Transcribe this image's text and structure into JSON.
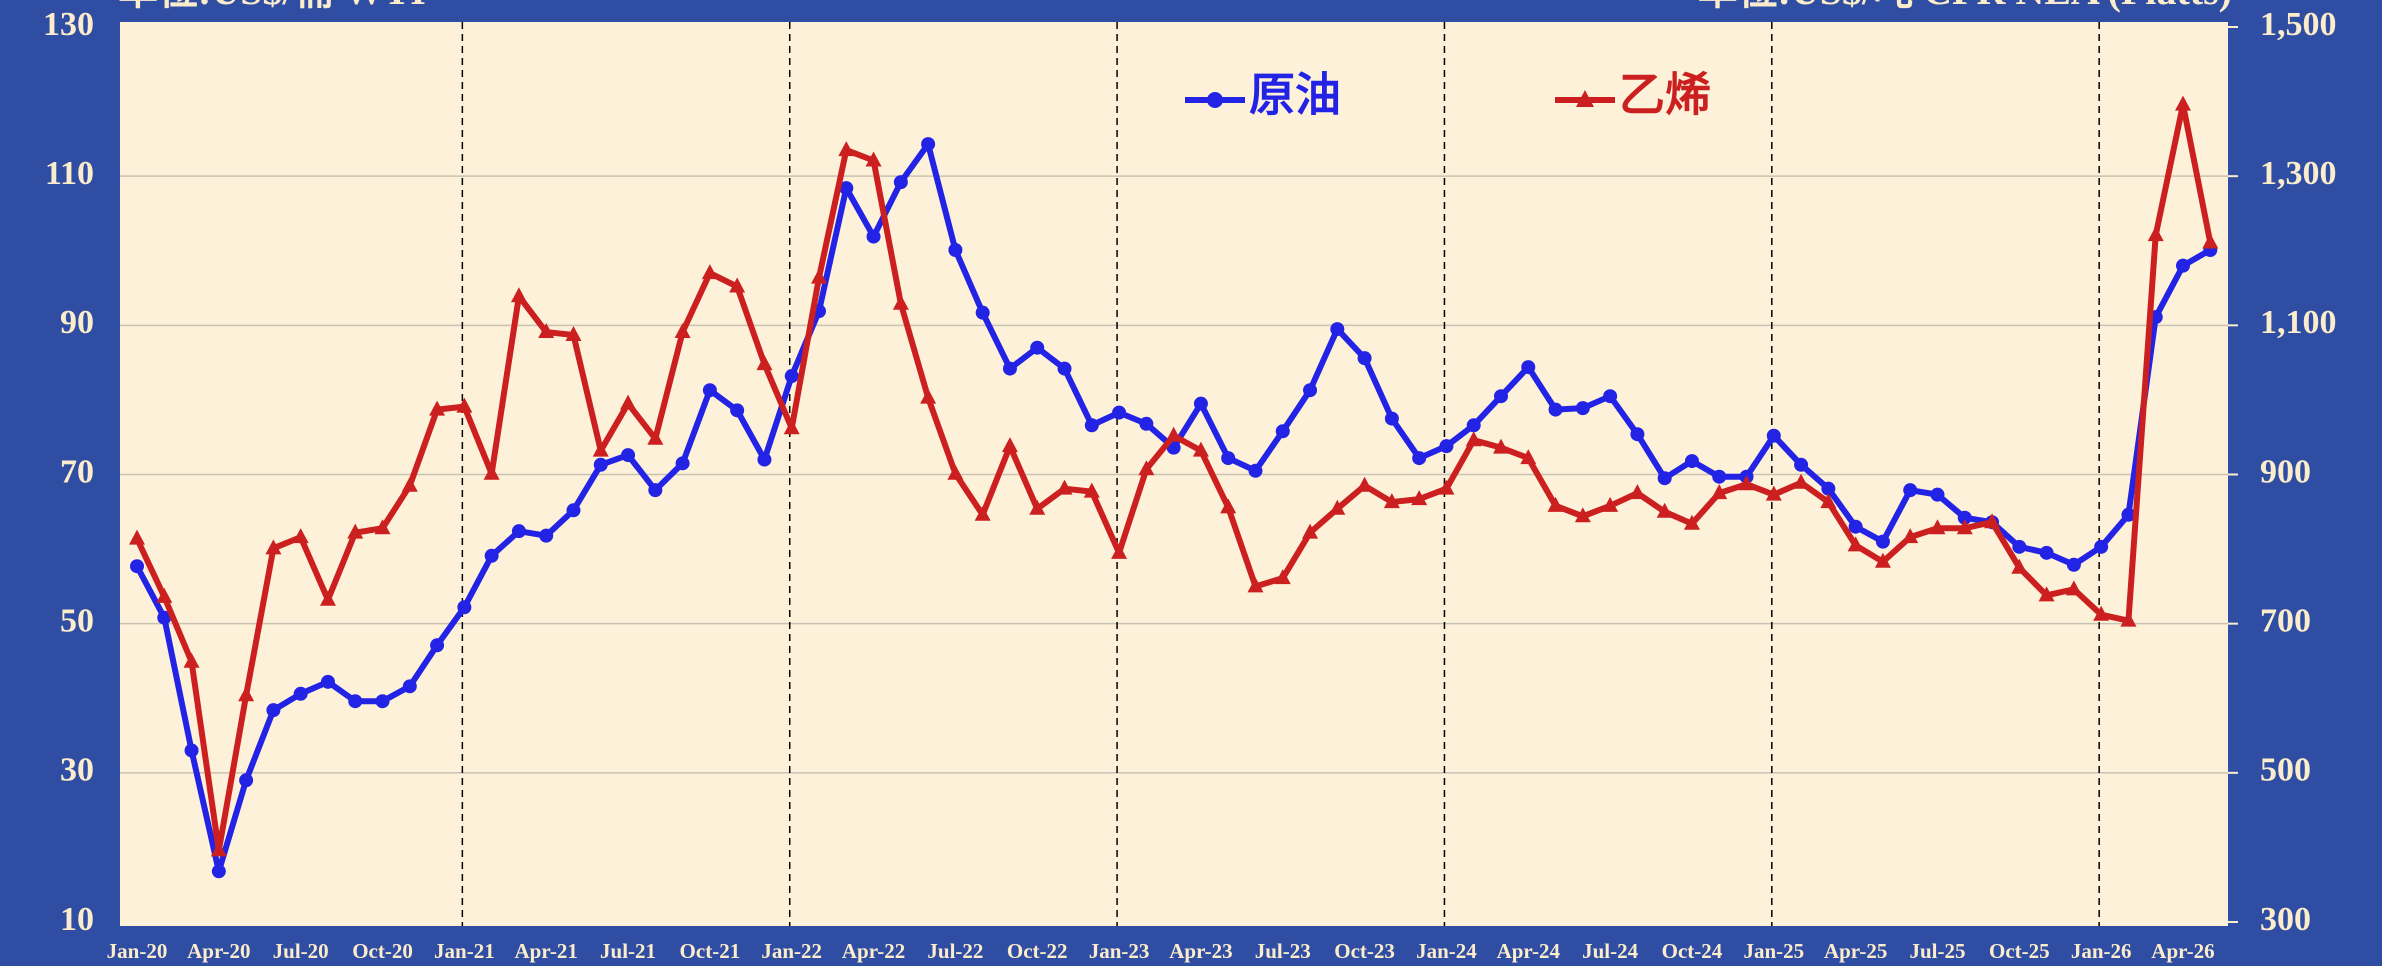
{
  "chart_data": {
    "type": "line",
    "title_left": "单位:US$/桶 WTI",
    "title_right": "单位:US$/吨 CFR NEA (Platts)",
    "categories": [
      "Jan-20",
      null,
      null,
      "Apr-20",
      null,
      null,
      "Jul-20",
      null,
      null,
      "Oct-20",
      null,
      null,
      "Jan-21",
      null,
      null,
      "Apr-21",
      null,
      null,
      "Jul-21",
      null,
      null,
      "Oct-21",
      null,
      null,
      "Jan-22",
      null,
      null,
      "Apr-22",
      null,
      null,
      "Jul-22",
      null,
      null,
      "Oct-22",
      null,
      null,
      "Jan-23",
      null,
      null,
      "Apr-23",
      null,
      null,
      "Jul-23",
      null,
      null,
      "Oct-23",
      null,
      null,
      "Jan-24",
      null,
      null,
      "Apr-24",
      null,
      null,
      "Jul-24",
      null,
      null,
      "Oct-24",
      null,
      null,
      "Jan-25",
      null,
      null,
      "Apr-25",
      null,
      null,
      "Jul-25",
      null,
      null,
      "Oct-25",
      null,
      null,
      "Jan-26",
      null,
      null,
      "Apr-26",
      null
    ],
    "series": [
      {
        "name": "原油",
        "color": "#2323e6",
        "marker": "circle",
        "values": [
          57.7,
          50.8,
          33,
          16.8,
          29,
          38.4,
          40.6,
          42.2,
          39.6,
          39.6,
          41.6,
          47.1,
          52.2,
          59.1,
          62.4,
          61.8,
          65.2,
          71.3,
          72.6,
          67.9,
          71.5,
          81.3,
          78.6,
          72,
          83.2,
          91.9,
          108.4,
          101.9,
          109.2,
          114.3,
          100.1,
          91.7,
          84.2,
          87,
          84.2,
          76.6,
          78.3,
          76.8,
          73.6,
          79.5,
          72.2,
          70.5,
          75.8,
          81.3,
          89.5,
          85.6,
          77.5,
          72.2,
          73.8,
          76.6,
          80.5,
          84.4,
          78.7,
          78.9,
          80.5,
          75.4,
          69.5,
          71.8,
          69.7,
          69.7,
          75.2,
          71.3,
          68.1,
          63,
          61,
          67.9,
          67.3,
          64.2,
          63.6,
          60.3,
          59.5,
          57.9,
          60.3,
          64.6,
          91.1,
          98,
          100.1
        ]
      },
      {
        "name": "乙烯",
        "color": "#cc2020",
        "marker": "triangle",
        "axis": "y2",
        "values": [
          814,
          736,
          649,
          396,
          604,
          801,
          816,
          732,
          822,
          828,
          885,
          987,
          991,
          901,
          1139,
          1091,
          1087,
          932,
          995,
          948,
          1091,
          1170,
          1152,
          1048,
          962,
          1164,
          1335,
          1321,
          1129,
          1003,
          901,
          846,
          938,
          854,
          881,
          877,
          795,
          907,
          952,
          932,
          856,
          750,
          761,
          822,
          854,
          885,
          863,
          867,
          881,
          946,
          936,
          922,
          858,
          844,
          858,
          875,
          850,
          834,
          875,
          887,
          873,
          889,
          863,
          805,
          783,
          816,
          828,
          828,
          836,
          775,
          738,
          746,
          712,
          704,
          1221,
          1396,
          1211
        ]
      }
    ],
    "ylim": [
      10,
      130
    ],
    "yticks": [
      10,
      30,
      50,
      70,
      90,
      110,
      130
    ],
    "y2lim": [
      300,
      1500
    ],
    "y2ticks": [
      {
        "value": 300,
        "label": "300"
      },
      {
        "value": 500,
        "label": "500"
      },
      {
        "value": 700,
        "label": "700"
      },
      {
        "value": 900,
        "label": "900"
      },
      {
        "value": 1100,
        "label": "1,100"
      },
      {
        "value": 1300,
        "label": "1,300"
      },
      {
        "value": 1500,
        "label": "1,500"
      }
    ],
    "grid": true
  }
}
